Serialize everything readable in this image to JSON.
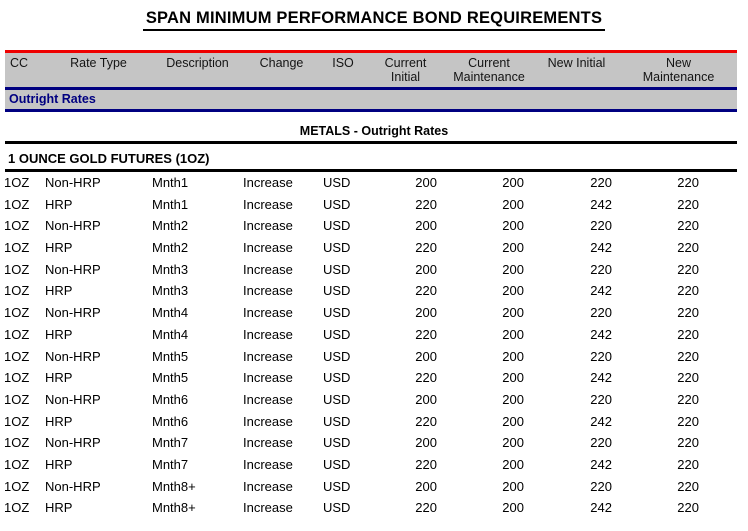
{
  "title": "SPAN MINIMUM PERFORMANCE BOND REQUIREMENTS",
  "colors": {
    "header_top_rule": "#ee0000",
    "section_rule_and_text": "#000080",
    "header_band_background": "#c5c5c5"
  },
  "table": {
    "section_label": "Outright Rates",
    "group_header": "METALS - Outright Rates",
    "subsection_header": "1 OUNCE GOLD FUTURES (1OZ)",
    "columns": [
      "CC",
      "Rate Type",
      "Description",
      "Change",
      "ISO",
      "Current\nInitial",
      "Current\nMaintenance",
      "New Initial",
      "New\nMaintenance"
    ],
    "rows": [
      [
        "1OZ",
        "Non-HRP",
        "Mnth1",
        "Increase",
        "USD",
        "200",
        "200",
        "220",
        "220"
      ],
      [
        "1OZ",
        "HRP",
        "Mnth1",
        "Increase",
        "USD",
        "220",
        "200",
        "242",
        "220"
      ],
      [
        "1OZ",
        "Non-HRP",
        "Mnth2",
        "Increase",
        "USD",
        "200",
        "200",
        "220",
        "220"
      ],
      [
        "1OZ",
        "HRP",
        "Mnth2",
        "Increase",
        "USD",
        "220",
        "200",
        "242",
        "220"
      ],
      [
        "1OZ",
        "Non-HRP",
        "Mnth3",
        "Increase",
        "USD",
        "200",
        "200",
        "220",
        "220"
      ],
      [
        "1OZ",
        "HRP",
        "Mnth3",
        "Increase",
        "USD",
        "220",
        "200",
        "242",
        "220"
      ],
      [
        "1OZ",
        "Non-HRP",
        "Mnth4",
        "Increase",
        "USD",
        "200",
        "200",
        "220",
        "220"
      ],
      [
        "1OZ",
        "HRP",
        "Mnth4",
        "Increase",
        "USD",
        "220",
        "200",
        "242",
        "220"
      ],
      [
        "1OZ",
        "Non-HRP",
        "Mnth5",
        "Increase",
        "USD",
        "200",
        "200",
        "220",
        "220"
      ],
      [
        "1OZ",
        "HRP",
        "Mnth5",
        "Increase",
        "USD",
        "220",
        "200",
        "242",
        "220"
      ],
      [
        "1OZ",
        "Non-HRP",
        "Mnth6",
        "Increase",
        "USD",
        "200",
        "200",
        "220",
        "220"
      ],
      [
        "1OZ",
        "HRP",
        "Mnth6",
        "Increase",
        "USD",
        "220",
        "200",
        "242",
        "220"
      ],
      [
        "1OZ",
        "Non-HRP",
        "Mnth7",
        "Increase",
        "USD",
        "200",
        "200",
        "220",
        "220"
      ],
      [
        "1OZ",
        "HRP",
        "Mnth7",
        "Increase",
        "USD",
        "220",
        "200",
        "242",
        "220"
      ],
      [
        "1OZ",
        "Non-HRP",
        "Mnth8+",
        "Increase",
        "USD",
        "200",
        "200",
        "220",
        "220"
      ],
      [
        "1OZ",
        "HRP",
        "Mnth8+",
        "Increase",
        "USD",
        "220",
        "200",
        "242",
        "220"
      ]
    ]
  }
}
